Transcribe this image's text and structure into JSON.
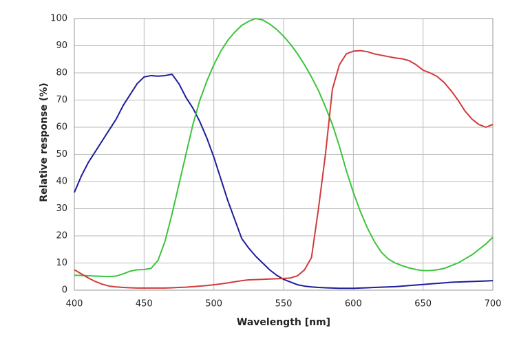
{
  "chart_data": {
    "type": "line",
    "xlabel": "Wavelength [nm]",
    "ylabel": "Relative response  (%)",
    "xlim": [
      400,
      700
    ],
    "ylim": [
      0,
      100
    ],
    "xticks": [
      400,
      450,
      500,
      550,
      600,
      650,
      700
    ],
    "yticks": [
      0,
      10,
      20,
      30,
      40,
      50,
      60,
      70,
      80,
      90,
      100
    ],
    "grid": true,
    "x": [
      400,
      405,
      410,
      415,
      420,
      425,
      430,
      435,
      440,
      445,
      450,
      455,
      460,
      465,
      470,
      475,
      480,
      485,
      490,
      495,
      500,
      505,
      510,
      515,
      520,
      525,
      530,
      535,
      540,
      545,
      550,
      555,
      560,
      565,
      570,
      575,
      580,
      585,
      590,
      595,
      600,
      605,
      610,
      615,
      620,
      625,
      630,
      635,
      640,
      645,
      650,
      655,
      660,
      665,
      670,
      675,
      680,
      685,
      690,
      695,
      700
    ],
    "series": [
      {
        "color": "#1c1c9a",
        "values": [
          36,
          42,
          47,
          51,
          55,
          59,
          63,
          68,
          72,
          76,
          78.5,
          79,
          78.8,
          79,
          79.5,
          76,
          71,
          67,
          62,
          56,
          49,
          41,
          33,
          26,
          19,
          15.5,
          12.5,
          10,
          7.5,
          5.5,
          4,
          3,
          2,
          1.5,
          1.2,
          1,
          0.9,
          0.8,
          0.7,
          0.7,
          0.7,
          0.8,
          0.9,
          1,
          1.1,
          1.2,
          1.3,
          1.5,
          1.7,
          1.9,
          2.1,
          2.3,
          2.5,
          2.7,
          2.9,
          3,
          3.1,
          3.2,
          3.3,
          3.4,
          3.5
        ]
      },
      {
        "color": "#3cc43c",
        "values": [
          5.5,
          5.4,
          5.3,
          5.2,
          5.1,
          5,
          5.2,
          6,
          7,
          7.5,
          7.6,
          8,
          11,
          18,
          28,
          39,
          50,
          61,
          70,
          77,
          83,
          88,
          92,
          95,
          97.5,
          99,
          100,
          99.5,
          98,
          96,
          93.5,
          90.5,
          87,
          83,
          78.5,
          73.5,
          67.5,
          61,
          53,
          44,
          36,
          29,
          23,
          18,
          14,
          11.5,
          10,
          9,
          8.2,
          7.6,
          7.2,
          7.2,
          7.5,
          8,
          9,
          10,
          11.5,
          13,
          15,
          17,
          19.5
        ]
      },
      {
        "color": "#d03a3a",
        "values": [
          7.5,
          6,
          4.5,
          3.2,
          2.2,
          1.5,
          1.2,
          1,
          0.9,
          0.8,
          0.8,
          0.8,
          0.8,
          0.8,
          0.9,
          1,
          1.1,
          1.3,
          1.5,
          1.7,
          2,
          2.3,
          2.7,
          3.1,
          3.5,
          3.8,
          3.9,
          4,
          4.1,
          4.2,
          4.3,
          4.5,
          5.3,
          7.5,
          12,
          30,
          50,
          74,
          83,
          87,
          88,
          88.2,
          87.8,
          87,
          86.5,
          86,
          85.5,
          85.2,
          84.5,
          83,
          81,
          80,
          78.7,
          76.5,
          73.5,
          70,
          66,
          63,
          61,
          60,
          61
        ]
      }
    ]
  }
}
